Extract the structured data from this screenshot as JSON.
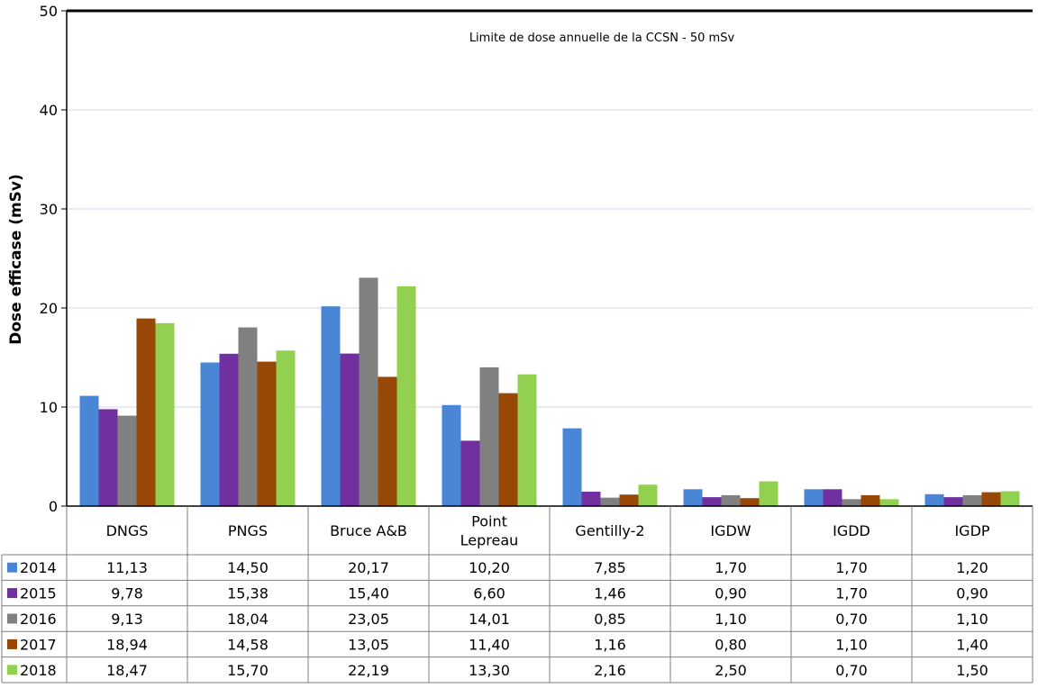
{
  "chart_data": {
    "type": "bar",
    "ylabel": "Dose efficase (mSv)",
    "ylim": [
      0,
      50
    ],
    "yticks": [
      "0",
      "10",
      "20",
      "30",
      "40",
      "50"
    ],
    "annotation": "Limite de dose annuelle de la CCSN - 50 mSv",
    "reference_line": 50,
    "categories": [
      "DNGS",
      "PNGS",
      "Bruce A&B",
      "Point Lepreau",
      "Gentilly-2",
      "IGDW",
      "IGDD",
      "IGDP"
    ],
    "category_lines": [
      [
        "DNGS"
      ],
      [
        "PNGS"
      ],
      [
        "Bruce A&B"
      ],
      [
        "Point",
        "Lepreau"
      ],
      [
        "Gentilly-2"
      ],
      [
        "IGDW"
      ],
      [
        "IGDD"
      ],
      [
        "IGDP"
      ]
    ],
    "series": [
      {
        "name": "2014",
        "color": "#4A86D6",
        "values": [
          11.13,
          14.5,
          20.17,
          10.2,
          7.85,
          1.7,
          1.7,
          1.2
        ],
        "labels": [
          "11,13",
          "14,50",
          "20,17",
          "10,20",
          "7,85",
          "1,70",
          "1,70",
          "1,20"
        ]
      },
      {
        "name": "2015",
        "color": "#7030A0",
        "values": [
          9.78,
          15.38,
          15.4,
          6.6,
          1.46,
          0.9,
          1.7,
          0.9
        ],
        "labels": [
          "9,78",
          "15,38",
          "15,40",
          "6,60",
          "1,46",
          "0,90",
          "1,70",
          "0,90"
        ]
      },
      {
        "name": "2016",
        "color": "#808080",
        "values": [
          9.13,
          18.04,
          23.05,
          14.01,
          0.85,
          1.1,
          0.7,
          1.1
        ],
        "labels": [
          "9,13",
          "18,04",
          "23,05",
          "14,01",
          "0,85",
          "1,10",
          "0,70",
          "1,10"
        ]
      },
      {
        "name": "2017",
        "color": "#974706",
        "values": [
          18.94,
          14.58,
          13.05,
          11.4,
          1.16,
          0.8,
          1.1,
          1.4
        ],
        "labels": [
          "18,94",
          "14,58",
          "13,05",
          "11,40",
          "1,16",
          "0,80",
          "1,10",
          "1,40"
        ]
      },
      {
        "name": "2018",
        "color": "#92D050",
        "values": [
          18.47,
          15.7,
          22.19,
          13.3,
          2.16,
          2.5,
          0.7,
          1.5
        ],
        "labels": [
          "18,47",
          "15,70",
          "22,19",
          "13,30",
          "2,16",
          "2,50",
          "0,70",
          "1,50"
        ]
      }
    ],
    "grid": true,
    "legend": "data table below chart"
  }
}
